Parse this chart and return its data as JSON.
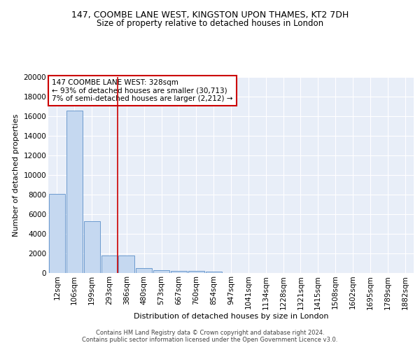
{
  "title_line1": "147, COOMBE LANE WEST, KINGSTON UPON THAMES, KT2 7DH",
  "title_line2": "Size of property relative to detached houses in London",
  "xlabel": "Distribution of detached houses by size in London",
  "ylabel": "Number of detached properties",
  "bar_color": "#c5d8f0",
  "bar_edge_color": "#5b8fc9",
  "vline_color": "#cc0000",
  "vline_x": 3.5,
  "annotation_text": "147 COOMBE LANE WEST: 328sqm\n← 93% of detached houses are smaller (30,713)\n7% of semi-detached houses are larger (2,212) →",
  "annotation_box_color": "#ffffff",
  "annotation_box_edge": "#cc0000",
  "categories": [
    "12sqm",
    "106sqm",
    "199sqm",
    "293sqm",
    "386sqm",
    "480sqm",
    "573sqm",
    "667sqm",
    "760sqm",
    "854sqm",
    "947sqm",
    "1041sqm",
    "1134sqm",
    "1228sqm",
    "1321sqm",
    "1415sqm",
    "1508sqm",
    "1602sqm",
    "1695sqm",
    "1789sqm",
    "1882sqm"
  ],
  "values": [
    8100,
    16600,
    5300,
    1800,
    1800,
    500,
    300,
    200,
    180,
    120,
    0,
    0,
    0,
    0,
    0,
    0,
    0,
    0,
    0,
    0,
    0
  ],
  "ylim": [
    0,
    20000
  ],
  "yticks": [
    0,
    2000,
    4000,
    6000,
    8000,
    10000,
    12000,
    14000,
    16000,
    18000,
    20000
  ],
  "background_color": "#e8eef8",
  "grid_color": "#ffffff",
  "footer_line1": "Contains HM Land Registry data © Crown copyright and database right 2024.",
  "footer_line2": "Contains public sector information licensed under the Open Government Licence v3.0.",
  "title_fontsize": 9,
  "subtitle_fontsize": 8.5,
  "axis_label_fontsize": 8,
  "tick_fontsize": 7.5,
  "footer_fontsize": 6
}
